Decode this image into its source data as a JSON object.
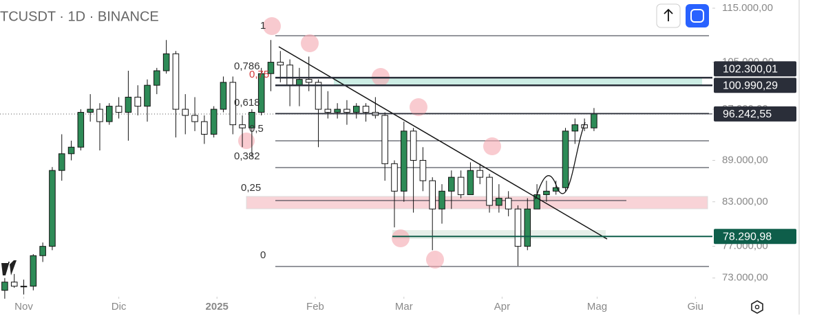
{
  "chart_data": {
    "type": "candlestick",
    "title": "TCUSDT · 1D · BINANCE",
    "log_scale": true,
    "ylim": [
      70900,
      116600
    ],
    "yticks": [
      {
        "value": 115000,
        "label": "115.000,00"
      },
      {
        "value": 105000,
        "label": "105.000,00"
      },
      {
        "value": 97000,
        "label": "97.000,00"
      },
      {
        "value": 89000,
        "label": "89.000,00"
      },
      {
        "value": 83000,
        "label": "83.000,00"
      },
      {
        "value": 77000,
        "label": "77.000,00"
      },
      {
        "value": 73000,
        "label": "73.000,00"
      }
    ],
    "xlim": [
      -0.5,
      74.1
    ],
    "xticks": [
      {
        "value": 2,
        "label": "Nov"
      },
      {
        "value": 12,
        "label": "Dic"
      },
      {
        "value": 22.33,
        "label": "2025"
      },
      {
        "value": 32.67,
        "label": "Feb"
      },
      {
        "value": 42,
        "label": "Mar"
      },
      {
        "value": 52.33,
        "label": "Apr"
      },
      {
        "value": 62.33,
        "label": "Mag"
      },
      {
        "value": 72.67,
        "label": "Giu"
      }
    ],
    "up_color": "#2e8b57",
    "down_color": "#ffffff",
    "candles": [
      [
        71500,
        73000,
        70500,
        72500
      ],
      [
        72500,
        73500,
        71800,
        72000
      ],
      [
        72000,
        72800,
        71000,
        72000
      ],
      [
        72000,
        76000,
        71500,
        75800
      ],
      [
        75800,
        77500,
        75000,
        77000
      ],
      [
        77000,
        88000,
        76500,
        87500
      ],
      [
        87500,
        93000,
        86000,
        90000
      ],
      [
        90000,
        92000,
        89000,
        91000
      ],
      [
        91000,
        97000,
        90500,
        96500
      ],
      [
        96500,
        99500,
        95000,
        97000
      ],
      [
        97000,
        98000,
        90500,
        95000
      ],
      [
        95000,
        98000,
        94500,
        97500
      ],
      [
        97500,
        99000,
        95500,
        96500
      ],
      [
        96500,
        103500,
        92000,
        99000
      ],
      [
        99000,
        101000,
        96000,
        97500
      ],
      [
        97500,
        102000,
        95000,
        101000
      ],
      [
        101000,
        104000,
        99500,
        103500
      ],
      [
        103500,
        109000,
        103000,
        106500
      ],
      [
        106500,
        107000,
        92500,
        97000
      ],
      [
        97000,
        99500,
        93000,
        96000
      ],
      [
        96000,
        99000,
        93500,
        95000
      ],
      [
        95000,
        96000,
        91500,
        93000
      ],
      [
        93000,
        97500,
        92500,
        97000
      ],
      [
        97000,
        102500,
        96500,
        101500
      ],
      [
        101500,
        102500,
        93000,
        94500
      ],
      [
        94500,
        96000,
        91000,
        94000
      ],
      [
        94000,
        97000,
        89500,
        96500
      ],
      [
        96500,
        104000,
        96000,
        103000
      ],
      [
        103000,
        109000,
        100000,
        105000
      ],
      [
        105000,
        107000,
        101500,
        104500
      ],
      [
        104500,
        105500,
        97500,
        101000
      ],
      [
        101000,
        104000,
        97500,
        102000
      ],
      [
        102000,
        106000,
        100000,
        101500
      ],
      [
        101500,
        102000,
        91000,
        97000
      ],
      [
        97000,
        100000,
        95500,
        96500
      ],
      [
        96500,
        98000,
        95500,
        97000
      ],
      [
        97000,
        98500,
        94500,
        96500
      ],
      [
        96500,
        98000,
        95500,
        97500
      ],
      [
        97500,
        98000,
        95000,
        96500
      ],
      [
        96500,
        99000,
        95500,
        96000
      ],
      [
        96000,
        96500,
        86000,
        88500
      ],
      [
        88500,
        89000,
        79500,
        84500
      ],
      [
        84500,
        95000,
        83000,
        93500
      ],
      [
        93500,
        94000,
        81500,
        89000
      ],
      [
        89000,
        91000,
        84500,
        86000
      ],
      [
        86000,
        86500,
        76500,
        82000
      ],
      [
        82000,
        85500,
        80000,
        84500
      ],
      [
        84500,
        87500,
        82000,
        86500
      ],
      [
        86500,
        87500,
        83500,
        84000
      ],
      [
        84000,
        88700,
        84000,
        87500
      ],
      [
        87500,
        88500,
        85500,
        86500
      ],
      [
        86500,
        87000,
        81500,
        82500
      ],
      [
        82500,
        85500,
        81500,
        83500
      ],
      [
        83500,
        84500,
        81000,
        82000
      ],
      [
        82000,
        82500,
        74500,
        77000
      ],
      [
        77000,
        83500,
        76500,
        82000
      ],
      [
        82000,
        85500,
        82000,
        84000
      ],
      [
        84000,
        86000,
        83000,
        84500
      ],
      [
        84500,
        86000,
        84000,
        85000
      ],
      [
        85000,
        94000,
        84500,
        93500
      ],
      [
        93500,
        95500,
        91500,
        94500
      ],
      [
        94500,
        95500,
        93500,
        94000
      ],
      [
        94000,
        97200,
        93500,
        96242.55
      ]
    ],
    "price_labels": [
      {
        "value": 102300.01,
        "label": "102.300,01",
        "color": "#2a2e39"
      },
      {
        "value": 100990.29,
        "label": "100.990,29",
        "color": "#2a2e39"
      },
      {
        "value": 96242.55,
        "label": "96.242,55",
        "color": "#2a2e39"
      },
      {
        "value": 78290.98,
        "label": "78.290,98",
        "color": "#0e5e4a"
      }
    ],
    "fib_labels": [
      "1",
      "0,786",
      "0,75",
      "0,618",
      "0,5",
      "0,382",
      "0,25",
      "0"
    ]
  }
}
